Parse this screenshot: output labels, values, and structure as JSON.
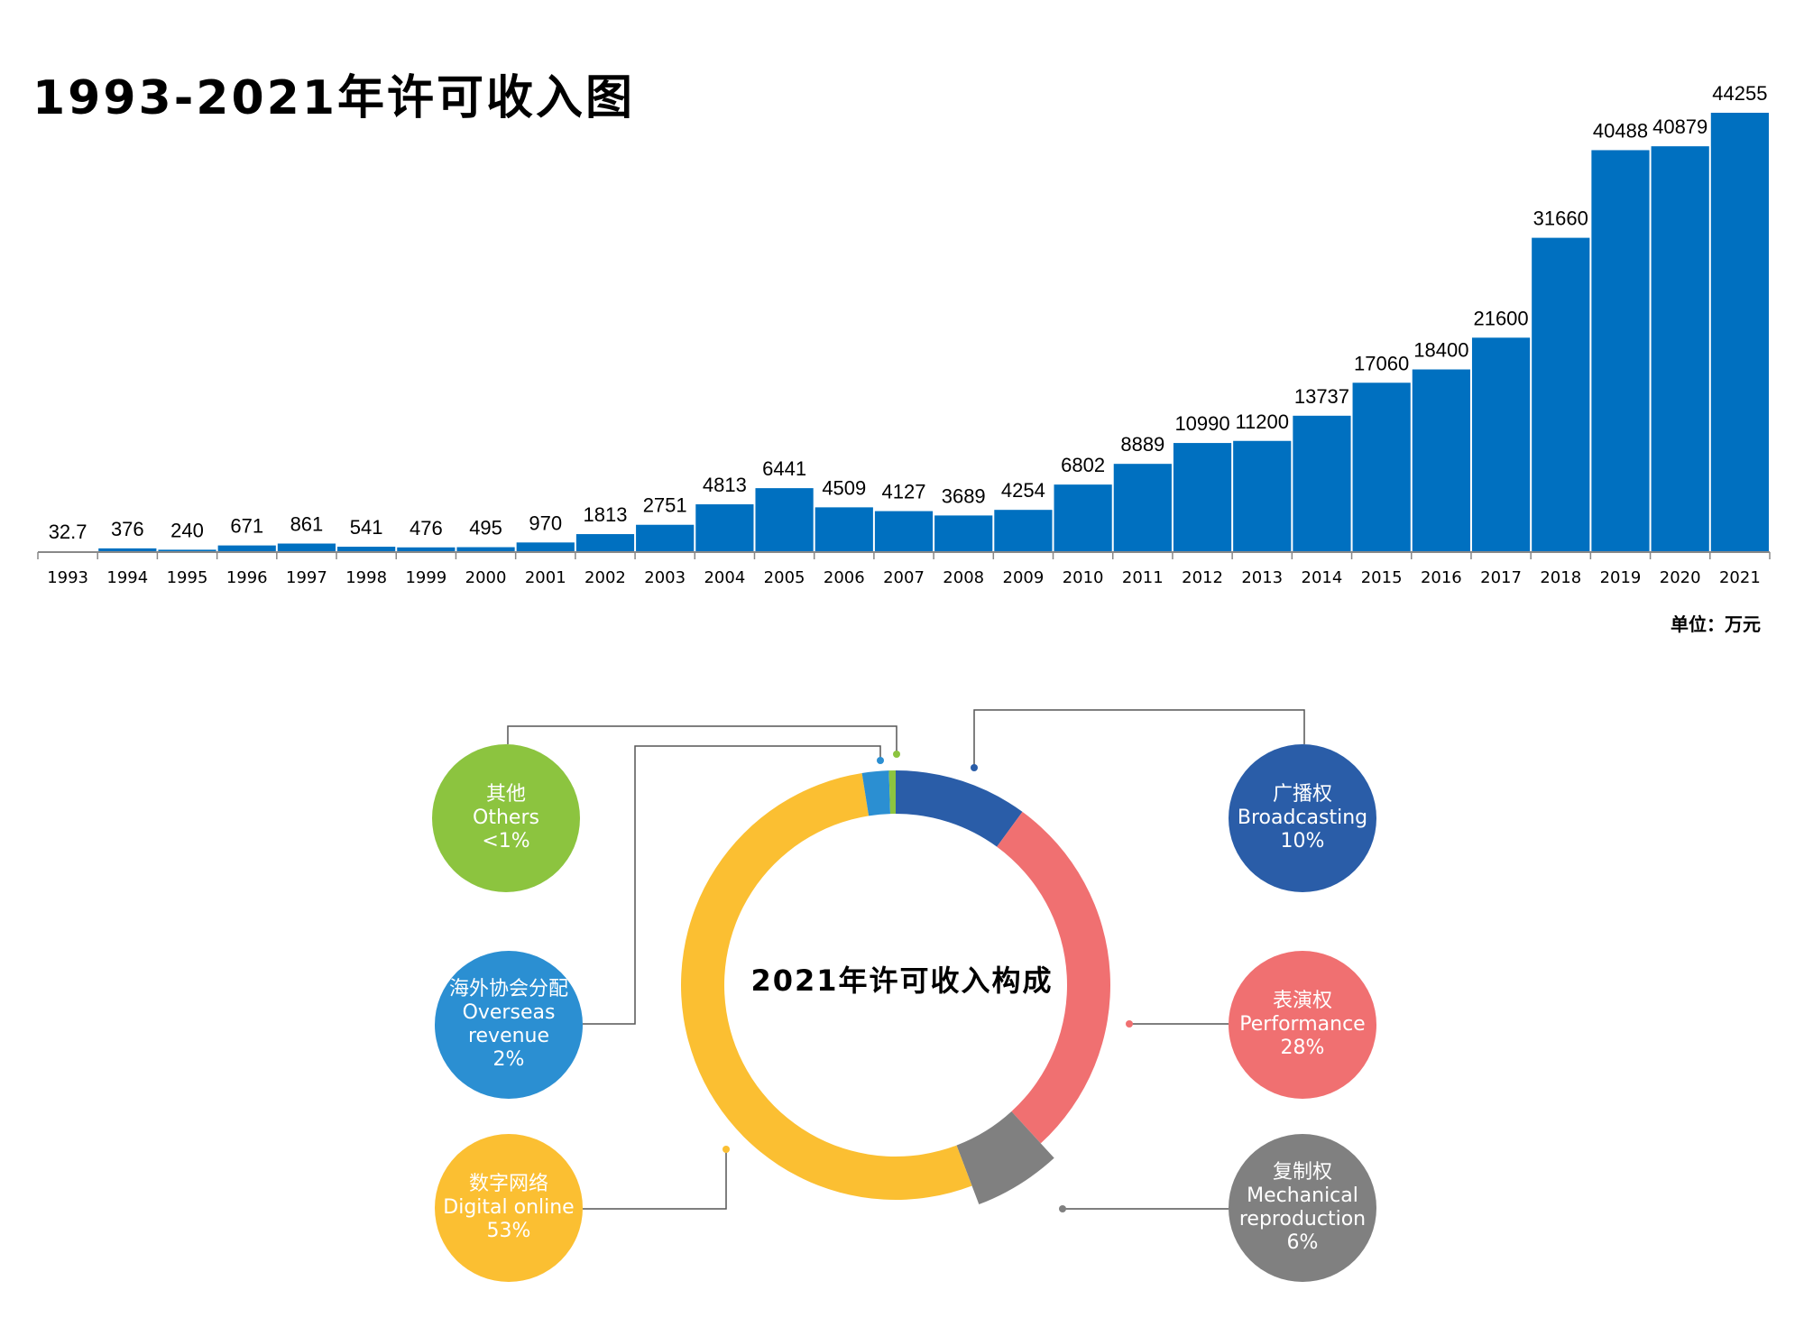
{
  "chart_data": [
    {
      "type": "bar",
      "title": "1993-2021年许可收入图",
      "categories": [
        "1993",
        "1994",
        "1995",
        "1996",
        "1997",
        "1998",
        "1999",
        "2000",
        "2001",
        "2002",
        "2003",
        "2004",
        "2005",
        "2006",
        "2007",
        "2008",
        "2009",
        "2010",
        "2011",
        "2012",
        "2013",
        "2014",
        "2015",
        "2016",
        "2017",
        "2018",
        "2019",
        "2020",
        "2021"
      ],
      "values": [
        32.7,
        376,
        240,
        671,
        861,
        541,
        476,
        495,
        970,
        1813,
        2751,
        4813,
        6441,
        4509,
        4127,
        3689,
        4254,
        6802,
        8889,
        10990,
        11200,
        13737,
        17060,
        18400,
        21600,
        31660,
        40488,
        40879,
        44255
      ],
      "unit": "单位：万元",
      "color": "#0070c0",
      "ylim": [
        0,
        44255
      ]
    },
    {
      "type": "pie",
      "title": "2021年许可收入构成",
      "slices": [
        {
          "name_cn": "广播权",
          "name_en": "Broadcasting",
          "pct_label": "10%",
          "value": 10,
          "color": "#2a5da8"
        },
        {
          "name_cn": "表演权",
          "name_en": "Performance",
          "pct_label": "28%",
          "value": 28,
          "color": "#f07071"
        },
        {
          "name_cn": "复制权",
          "name_en": "Mechanical reproduction",
          "pct_label": "6%",
          "value": 6,
          "color": "#808080"
        },
        {
          "name_cn": "数字网络",
          "name_en": "Digital online",
          "pct_label": "53%",
          "value": 53,
          "color": "#fbbf32"
        },
        {
          "name_cn": "海外协会分配",
          "name_en": "Overseas revenue",
          "pct_label": "2%",
          "value": 2,
          "color": "#2b8fd2"
        },
        {
          "name_cn": "其他",
          "name_en": "Others",
          "pct_label": "<1%",
          "value": 0.5,
          "color": "#8cc43f"
        }
      ]
    }
  ]
}
